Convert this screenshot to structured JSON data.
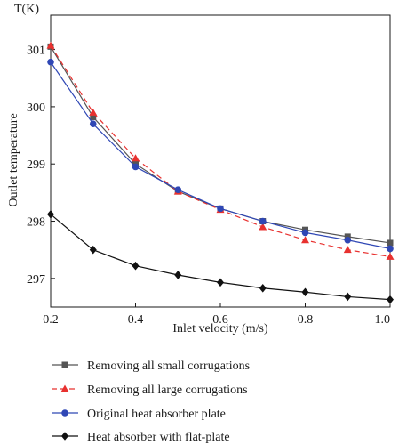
{
  "chart_data": {
    "type": "line",
    "y_unit_label": "T(K)",
    "xlabel": "Inlet velocity (m/s)",
    "ylabel": "Outlet temperature",
    "xlim": [
      0.2,
      1.0
    ],
    "ylim": [
      296.5,
      301.6
    ],
    "x_ticks": [
      "0.2",
      "0.4",
      "0.6",
      "0.8",
      "1.0"
    ],
    "y_ticks": [
      "297",
      "298",
      "299",
      "300",
      "301"
    ],
    "x": [
      0.2,
      0.3,
      0.4,
      0.5,
      0.6,
      0.7,
      0.8,
      0.9,
      1.0
    ],
    "grid": false,
    "legend_position": "bottom",
    "series": [
      {
        "name": "Removing all small corrugations",
        "values": [
          301.05,
          299.82,
          299.0,
          298.52,
          298.22,
          298.0,
          297.85,
          297.73,
          297.62
        ],
        "color": "#555555",
        "marker": "square",
        "dash": "solid"
      },
      {
        "name": "Removing all large corrugations",
        "values": [
          301.07,
          299.9,
          299.1,
          298.52,
          298.2,
          297.9,
          297.67,
          297.5,
          297.38
        ],
        "color": "#e8312f",
        "marker": "triangle",
        "dash": "dashed"
      },
      {
        "name": "Original heat absorber plate",
        "values": [
          300.78,
          299.7,
          298.95,
          298.55,
          298.22,
          298.0,
          297.8,
          297.67,
          297.52
        ],
        "color": "#2f47b5",
        "marker": "circle",
        "dash": "solid"
      },
      {
        "name": "Heat absorber with flat-plate",
        "values": [
          298.12,
          297.5,
          297.22,
          297.06,
          296.93,
          296.83,
          296.76,
          296.68,
          296.63
        ],
        "color": "#111111",
        "marker": "diamond",
        "dash": "solid"
      }
    ]
  }
}
